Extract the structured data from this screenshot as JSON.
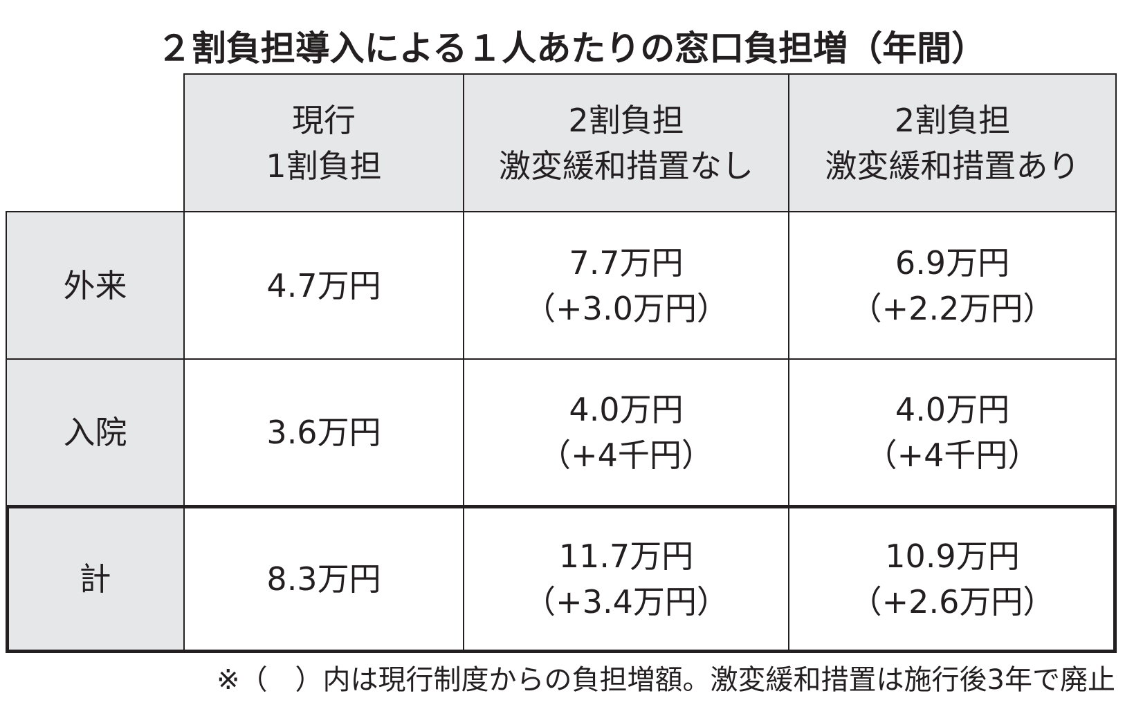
{
  "title": "２割負担導入による１人あたりの窓口負担増（年間）",
  "table": {
    "columns": [
      {
        "lines": [
          "現行",
          "1割負担"
        ]
      },
      {
        "lines": [
          "2割負担",
          "激変緩和措置なし"
        ]
      },
      {
        "lines": [
          "2割負担",
          "激変緩和措置あり"
        ]
      }
    ],
    "rows": [
      {
        "label": "外来",
        "cells": [
          {
            "lines": [
              "4.7万円"
            ]
          },
          {
            "lines": [
              "7.7万円",
              "（+3.0万円）"
            ]
          },
          {
            "lines": [
              "6.9万円",
              "（+2.2万円）"
            ]
          }
        ]
      },
      {
        "label": "入院",
        "cells": [
          {
            "lines": [
              "3.6万円"
            ]
          },
          {
            "lines": [
              "4.0万円",
              "（+4千円）"
            ]
          },
          {
            "lines": [
              "4.0万円",
              "（+4千円）"
            ]
          }
        ]
      },
      {
        "label": "計",
        "cells": [
          {
            "lines": [
              "8.3万円"
            ]
          },
          {
            "lines": [
              "11.7万円",
              "（+3.4万円）"
            ]
          },
          {
            "lines": [
              "10.9万円",
              "（+2.6万円）"
            ]
          }
        ]
      }
    ]
  },
  "note": "※（　）内は現行制度からの負担増額。激変緩和措置は施行後3年で廃止"
}
